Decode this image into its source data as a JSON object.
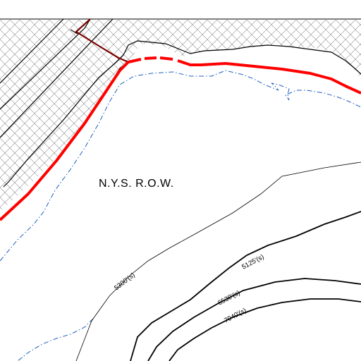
{
  "map": {
    "area_label": "N.Y.S. R.O.W.",
    "contour_labels": {
      "c5125": "5125'(s)",
      "c5300": "5300'(s)",
      "c6530": "6530'(s)",
      "c7040": "7040'(s)"
    }
  },
  "colors": {
    "background": "#ffffff",
    "crosshatch_line": "#8a8a8a",
    "parcel_boundary": "#ff0000",
    "easement_line": "#7a0000",
    "contour_line": "#000000",
    "shoreline": "#1f5fbf"
  }
}
